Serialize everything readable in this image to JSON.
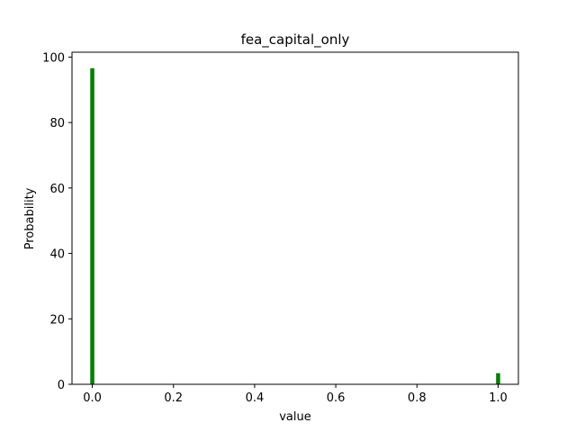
{
  "chart_data": {
    "type": "bar",
    "title": "fea_capital_only",
    "xlabel": "value",
    "ylabel": "Probability",
    "xlim": [
      -0.05,
      1.05
    ],
    "ylim": [
      0,
      101.5
    ],
    "grid": false,
    "bar_width": 0.01,
    "bar_color": "#008000",
    "x_ticks": [
      {
        "value": 0.0,
        "label": "0.0"
      },
      {
        "value": 0.2,
        "label": "0.2"
      },
      {
        "value": 0.4,
        "label": "0.4"
      },
      {
        "value": 0.6,
        "label": "0.6"
      },
      {
        "value": 0.8,
        "label": "0.8"
      },
      {
        "value": 1.0,
        "label": "1.0"
      }
    ],
    "y_ticks": [
      {
        "value": 0,
        "label": "0"
      },
      {
        "value": 20,
        "label": "20"
      },
      {
        "value": 40,
        "label": "40"
      },
      {
        "value": 60,
        "label": "60"
      },
      {
        "value": 80,
        "label": "80"
      },
      {
        "value": 100,
        "label": "100"
      }
    ],
    "bars": [
      {
        "x": 0.0,
        "value": 96.6
      },
      {
        "x": 1.0,
        "value": 3.4
      }
    ]
  }
}
